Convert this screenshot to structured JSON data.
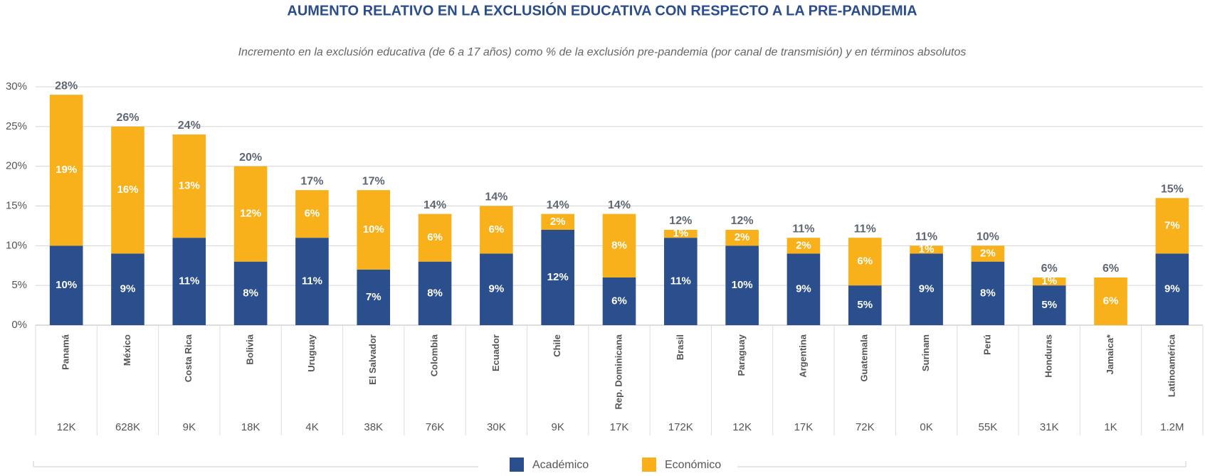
{
  "chart_data": {
    "type": "stacked_bar",
    "title": "AUMENTO RELATIVO EN LA EXCLUSIÓN EDUCATIVA CON RESPECTO A LA PRE-PANDEMIA",
    "subtitle": "Incremento en la exclusión educativa (de 6 a 17 años) como % de la exclusión pre-pandemia (por canal de transmisión) y en términos absolutos",
    "categories": [
      "Panamá",
      "México",
      "Costa Rica",
      "Bolivia",
      "Uruguay",
      "El Salvador",
      "Colombia",
      "Ecuador",
      "Chile",
      "Rep. Dominicana",
      "Brasil",
      "Paraguay",
      "Argentina",
      "Guatemala",
      "Surinam",
      "Perú",
      "Honduras",
      "Jamaica*",
      "Latinoamérica"
    ],
    "series": [
      {
        "name": "Académico",
        "color": "#2a4f8c",
        "values": [
          10,
          9,
          11,
          8,
          11,
          7,
          8,
          9,
          12,
          6,
          11,
          10,
          9,
          5,
          9,
          8,
          5,
          null,
          9
        ],
        "value_labels": [
          "10%",
          "9%",
          "11%",
          "8%",
          "11%",
          "7%",
          "8%",
          "9%",
          "12%",
          "6%",
          "11%",
          "10%",
          "9%",
          "5%",
          "9%",
          "8%",
          "5%",
          null,
          "9%"
        ]
      },
      {
        "name": "Económico",
        "color": "#f9b11b",
        "values": [
          19,
          16,
          13,
          12,
          6,
          10,
          6,
          6,
          2,
          8,
          1,
          2,
          2,
          6,
          1,
          2,
          1,
          6,
          7
        ],
        "value_labels": [
          "19%",
          "16%",
          "13%",
          "12%",
          "6%",
          "10%",
          "6%",
          "6%",
          "2%",
          "8%",
          "1%",
          "2%",
          "2%",
          "6%",
          "1%",
          "2%",
          "1%",
          "6%",
          "7%"
        ]
      }
    ],
    "total_labels": [
      "28%",
      "26%",
      "24%",
      "20%",
      "17%",
      "17%",
      "14%",
      "14%",
      "14%",
      "14%",
      "12%",
      "12%",
      "11%",
      "11%",
      "11%",
      "10%",
      "6%",
      "6%",
      "15%"
    ],
    "absolutes": [
      "12K",
      "628K",
      "9K",
      "18K",
      "4K",
      "38K",
      "76K",
      "30K",
      "9K",
      "17K",
      "172K",
      "12K",
      "17K",
      "72K",
      "0K",
      "55K",
      "31K",
      "1K",
      "1.2M"
    ],
    "ylim": [
      0,
      30
    ],
    "yticks": [
      {
        "value": 0,
        "label": "0%"
      },
      {
        "value": 5,
        "label": "5%"
      },
      {
        "value": 10,
        "label": "10%"
      },
      {
        "value": 15,
        "label": "15%"
      },
      {
        "value": 20,
        "label": "20%"
      },
      {
        "value": 25,
        "label": "25%"
      },
      {
        "value": 30,
        "label": "30%"
      }
    ],
    "grid": true
  }
}
